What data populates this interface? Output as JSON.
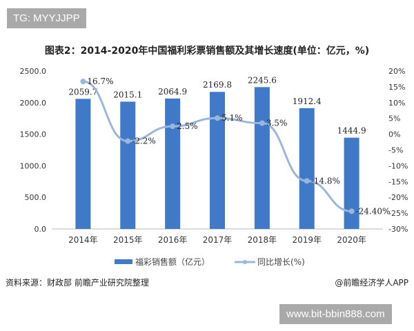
{
  "tag": "TG: MYYJJPP",
  "watermark": "www.bit-bbin888.com",
  "source": "资料来源：财政部 前瞻产业研究院整理",
  "brand": "@前瞻经济学人APP",
  "colors": {
    "bar": "#3f79c8",
    "line": "#9bb6dc"
  },
  "chart_data": {
    "type": "bar",
    "title": "图表2：2014-2020年中国福利彩票销售额及其增长速度(单位：亿元，%)",
    "categories": [
      "2014年",
      "2015年",
      "2016年",
      "2017年",
      "2018年",
      "2019年",
      "2020年"
    ],
    "series": [
      {
        "name": "福彩销售额（亿元）",
        "type": "bar",
        "axis": "left",
        "values": [
          2059.7,
          2015.1,
          2064.9,
          2169.8,
          2245.6,
          1912.4,
          1444.9
        ],
        "labels": [
          "2059.7",
          "2015.1",
          "2064.9",
          "2169.8",
          "2245.6",
          "1912.4",
          "1444.9"
        ]
      },
      {
        "name": "同比增长(%)",
        "type": "line",
        "axis": "right",
        "values": [
          16.7,
          -2.2,
          2.5,
          5.1,
          3.5,
          -14.8,
          -24.4
        ],
        "labels": [
          "16.7%",
          "-2.2%",
          "2.5%",
          "5.1%",
          "3.5%",
          "-14.8%",
          "-24.40%"
        ]
      }
    ],
    "ylim": [
      0,
      2500
    ],
    "yticks": [
      "0.0",
      "500.0",
      "1000.0",
      "1500.0",
      "2000.0",
      "2500.0"
    ],
    "y2lim": [
      -30,
      20
    ],
    "y2ticks": [
      "-30%",
      "-25%",
      "-20%",
      "-15%",
      "-10%",
      "-5%",
      "0%",
      "5%",
      "10%",
      "15%",
      "20%"
    ],
    "legend": "bottom"
  }
}
